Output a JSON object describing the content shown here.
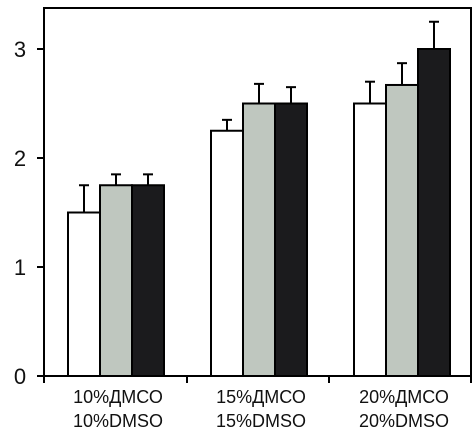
{
  "chart_data": {
    "type": "bar",
    "title": "",
    "xlabel": "",
    "ylabel": "",
    "ylim": [
      0,
      3.3
    ],
    "yticks": [
      0,
      1,
      2,
      3
    ],
    "grid": false,
    "legend": "none",
    "categories": [
      {
        "line1": "10%ДМСО",
        "line2": "10%DMSO"
      },
      {
        "line1": "15%ДМСО",
        "line2": "15%DMSO"
      },
      {
        "line1": "20%ДМСО",
        "line2": "20%DMSO"
      }
    ],
    "series": [
      {
        "color": "#ffffff",
        "values": [
          1.5,
          2.25,
          2.5
        ],
        "errors": [
          0.25,
          0.1,
          0.2
        ]
      },
      {
        "color": "#bfc7bf",
        "values": [
          1.75,
          2.5,
          2.67
        ],
        "errors": [
          0.1,
          0.18,
          0.2
        ]
      },
      {
        "color": "#1b1b1d",
        "values": [
          1.75,
          2.5,
          3.0
        ],
        "errors": [
          0.1,
          0.15,
          0.25
        ]
      }
    ]
  }
}
